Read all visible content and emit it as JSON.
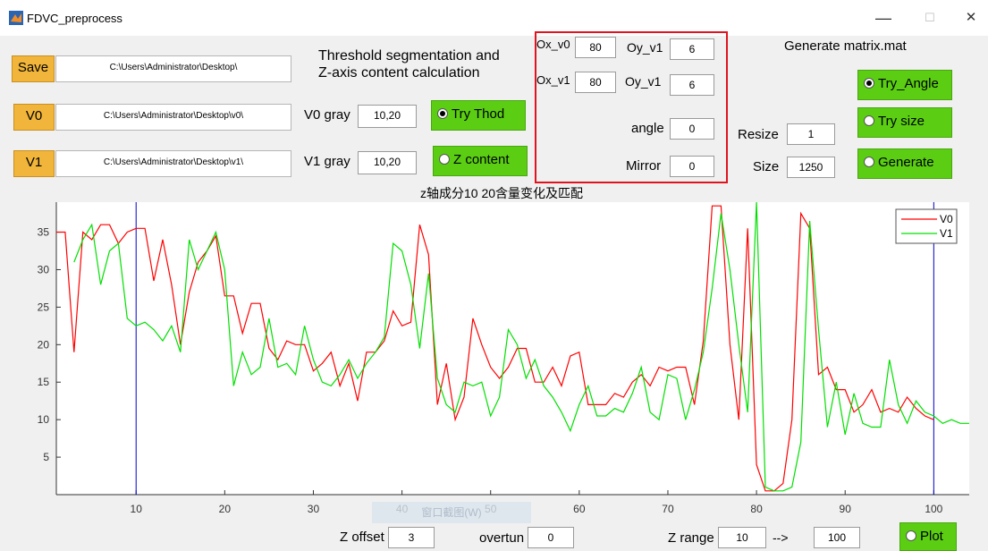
{
  "window": {
    "title": "FDVC_preprocess",
    "min_glyph": "—",
    "max_glyph": "☐",
    "close_glyph": "✕"
  },
  "save": {
    "label": "Save",
    "path": "C:\\Users\\Administrator\\Desktop\\"
  },
  "v0": {
    "label": "V0",
    "path": "C:\\Users\\Administrator\\Desktop\\v0\\",
    "gray_label": "V0 gray",
    "gray_value": "10,20"
  },
  "v1": {
    "label": "V1",
    "path": "C:\\Users\\Administrator\\Desktop\\v1\\",
    "gray_label": "V1 gray",
    "gray_value": "10,20"
  },
  "threshold_title_1": "Threshold segmentation and",
  "threshold_title_2": "Z-axis content calculation",
  "try_thod": "Try Thod",
  "z_content": "Z content",
  "offsets": {
    "ox_v0_label": "Ox_v0",
    "ox_v0": "80",
    "oy_v1_label_a": "Oy_v1",
    "oy_v1_a": "6",
    "ox_v1_label": "Ox_v1",
    "ox_v1": "80",
    "oy_v1_label_b": "Oy_v1",
    "oy_v1_b": "6",
    "angle_label": "angle",
    "angle": "0",
    "mirror_label": "Mirror",
    "mirror": "0"
  },
  "generate_title": "Generate matrix.mat",
  "try_angle": "Try_Angle",
  "try_size": "Try size",
  "generate": "Generate",
  "resize_label": "Resize",
  "resize_value": "1",
  "size_label": "Size",
  "size_value": "1250",
  "bottom": {
    "zoffset_label": "Z offset",
    "zoffset": "3",
    "overtun_label": "overtun",
    "overtun": "0",
    "zrange_label": "Z range",
    "zrange_from": "10",
    "arrow": "-->",
    "zrange_to": "100",
    "plot": "Plot",
    "overlay_text": "窗口截图(W)"
  },
  "colors": {
    "v0": "#ff0000",
    "v1": "#00e000",
    "markers": "#0000cc"
  },
  "chart_data": {
    "type": "line",
    "title": "z轴成分10 20含量变化及匹配",
    "xlim": [
      1,
      104
    ],
    "ylim": [
      0,
      39
    ],
    "xticks": [
      10,
      20,
      30,
      40,
      50,
      60,
      70,
      80,
      90,
      100
    ],
    "yticks": [
      5,
      10,
      15,
      20,
      25,
      30,
      35
    ],
    "vlines": [
      10,
      100
    ],
    "legend": "top-right",
    "series": [
      {
        "name": "V0",
        "color": "#ff0000",
        "x": [
          1,
          2,
          3,
          4,
          5,
          6,
          7,
          8,
          9,
          10,
          11,
          12,
          13,
          14,
          15,
          16,
          17,
          18,
          19,
          20,
          21,
          22,
          23,
          24,
          25,
          26,
          27,
          28,
          29,
          30,
          31,
          32,
          33,
          34,
          35,
          36,
          37,
          38,
          39,
          40,
          41,
          42,
          43,
          44,
          45,
          46,
          47,
          48,
          49,
          50,
          51,
          52,
          53,
          54,
          55,
          56,
          57,
          58,
          59,
          60,
          61,
          62,
          63,
          64,
          65,
          66,
          67,
          68,
          69,
          70,
          71,
          72,
          73,
          74,
          75,
          76,
          77,
          78,
          79,
          80,
          81,
          82,
          83,
          84,
          85,
          86,
          87,
          88,
          89,
          90,
          91,
          92,
          93,
          94,
          95,
          96,
          97,
          98,
          99,
          100
        ],
        "y": [
          35,
          35,
          19,
          35,
          34,
          36,
          36,
          33.5,
          35,
          35.5,
          35.5,
          28.5,
          34,
          28,
          20,
          27,
          31,
          32.5,
          34.5,
          26.5,
          26.5,
          21.5,
          25.5,
          25.5,
          19.5,
          18,
          20.5,
          20,
          20,
          16.5,
          17.5,
          19,
          14.5,
          17.5,
          12.5,
          19,
          19,
          20.5,
          24.5,
          22.5,
          23,
          36,
          32,
          12,
          17.5,
          10,
          13,
          23.5,
          20,
          17,
          15.5,
          17,
          19.5,
          19.5,
          15,
          15,
          17,
          14.5,
          18.5,
          19,
          12,
          12,
          12,
          13.5,
          13,
          15,
          16,
          14.5,
          17,
          16.5,
          17,
          17,
          12,
          20.5,
          38.5,
          38.5,
          20,
          10,
          35.5,
          4,
          0.5,
          0.5,
          1.5,
          10,
          37.5,
          35.5,
          16,
          17,
          14,
          14,
          11,
          12,
          14,
          11,
          11.5,
          11,
          13,
          11.5,
          10.5,
          10
        ]
      },
      {
        "name": "V1",
        "color": "#00e000",
        "x": [
          3,
          4,
          5,
          6,
          7,
          8,
          9,
          10,
          11,
          12,
          13,
          14,
          15,
          16,
          17,
          18,
          19,
          20,
          21,
          22,
          23,
          24,
          25,
          26,
          27,
          28,
          29,
          30,
          31,
          32,
          33,
          34,
          35,
          36,
          37,
          38,
          39,
          40,
          41,
          42,
          43,
          44,
          45,
          46,
          47,
          48,
          49,
          50,
          51,
          52,
          53,
          54,
          55,
          56,
          57,
          58,
          59,
          60,
          61,
          62,
          63,
          64,
          65,
          66,
          67,
          68,
          69,
          70,
          71,
          72,
          73,
          74,
          75,
          76,
          77,
          78,
          79,
          80,
          81,
          82,
          83,
          84,
          85,
          86,
          87,
          88,
          89,
          90,
          91,
          92,
          93,
          94,
          95,
          96,
          97,
          98,
          99,
          100,
          101,
          102,
          103,
          104
        ],
        "y": [
          31,
          34,
          36,
          28,
          32.5,
          33.5,
          23.5,
          22.5,
          23,
          22,
          20.5,
          22.5,
          19,
          34,
          30,
          32.5,
          35,
          30,
          14.5,
          19,
          16,
          17,
          23.5,
          17,
          17.5,
          16,
          22.5,
          18,
          15,
          14.5,
          16,
          18,
          15.5,
          17.5,
          19,
          21,
          33.5,
          32.5,
          28,
          19.5,
          29.5,
          15.5,
          12,
          11,
          15,
          14.5,
          15,
          10.5,
          13,
          22,
          20,
          15.5,
          18,
          14.5,
          13,
          11,
          8.5,
          12,
          14.5,
          10.5,
          10.5,
          11.5,
          11,
          13.5,
          17,
          11,
          10,
          16,
          15.5,
          10,
          14,
          19,
          27.5,
          37.5,
          30,
          20,
          11,
          39,
          1,
          0.5,
          0.5,
          1,
          7,
          36.5,
          22,
          9,
          15,
          8,
          13.5,
          9.5,
          9,
          9,
          18,
          12,
          9.5,
          12.5,
          11,
          10.5,
          9.5,
          10,
          9.5,
          9.5
        ]
      }
    ]
  }
}
